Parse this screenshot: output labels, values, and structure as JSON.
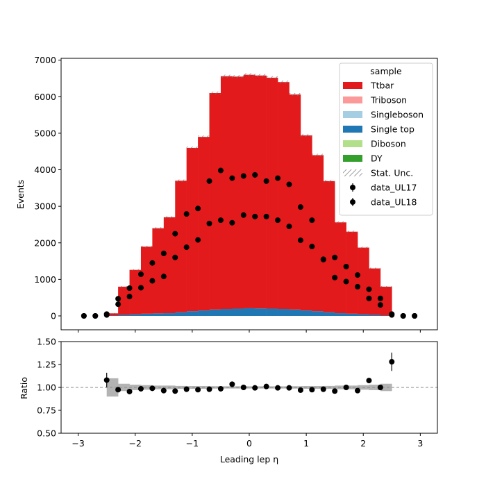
{
  "chart_data": {
    "type": "bar",
    "stacked": true,
    "xlabel": "Leading lep η",
    "ylabel": "Events",
    "ratio_ylabel": "Ratio",
    "xlim": [
      -3.3,
      3.3
    ],
    "ylim": [
      -380,
      7050
    ],
    "ratio_ylim": [
      0.5,
      1.5
    ],
    "x_ticks": [
      -3,
      -2,
      -1,
      0,
      1,
      2,
      3
    ],
    "x_tick_labels": [
      "−3",
      "−2",
      "−1",
      "0",
      "1",
      "2",
      "3"
    ],
    "y_ticks": [
      0,
      1000,
      2000,
      3000,
      4000,
      5000,
      6000,
      7000
    ],
    "y_tick_labels": [
      "0",
      "1000",
      "2000",
      "3000",
      "4000",
      "5000",
      "6000",
      "7000"
    ],
    "ratio_y_ticks": [
      0.5,
      0.75,
      1.0,
      1.25,
      1.5
    ],
    "ratio_y_tick_labels": [
      "0.50",
      "0.75",
      "1.00",
      "1.25",
      "1.50"
    ],
    "legend": {
      "title": "sample",
      "placement": "top-right",
      "entries": [
        {
          "label": "Ttbar",
          "kind": "fill",
          "color": "#e31a1c"
        },
        {
          "label": "Triboson",
          "kind": "fill",
          "color": "#fb9a99"
        },
        {
          "label": "Singleboson",
          "kind": "fill",
          "color": "#a6cee3"
        },
        {
          "label": "Single top",
          "kind": "fill",
          "color": "#1f78b4"
        },
        {
          "label": "Diboson",
          "kind": "fill",
          "color": "#b2df8a"
        },
        {
          "label": "DY",
          "kind": "fill",
          "color": "#33a02c"
        },
        {
          "label": "Stat. Unc.",
          "kind": "hatch",
          "color": "#888888"
        },
        {
          "label": "data_UL17",
          "kind": "marker",
          "color": "#000000"
        },
        {
          "label": "data_UL18",
          "kind": "marker",
          "color": "#000000"
        }
      ]
    },
    "bin_edges": [
      -2.5,
      -2.3,
      -2.1,
      -1.9,
      -1.7,
      -1.5,
      -1.3,
      -1.1,
      -0.9,
      -0.7,
      -0.5,
      -0.3,
      -0.1,
      0.1,
      0.3,
      0.5,
      0.7,
      0.9,
      1.1,
      1.3,
      1.5,
      1.7,
      1.9,
      2.1,
      2.3,
      2.5
    ],
    "series": [
      {
        "name": "Single top",
        "color": "#1f78b4",
        "values": [
          10,
          30,
          45,
          60,
          70,
          75,
          100,
          130,
          150,
          175,
          190,
          200,
          210,
          205,
          200,
          190,
          175,
          150,
          130,
          100,
          75,
          60,
          45,
          30,
          10
        ]
      },
      {
        "name": "Ttbar",
        "color": "#e31a1c",
        "values": [
          60,
          770,
          1215,
          1835,
          2330,
          2625,
          3600,
          4470,
          4750,
          5925,
          6370,
          6350,
          6390,
          6375,
          6320,
          6210,
          5885,
          4790,
          4270,
          3590,
          2485,
          2245,
          1825,
          1270,
          790
        ]
      }
    ],
    "totals": [
      70,
      800,
      1260,
      1895,
      2400,
      2700,
      3700,
      4600,
      4900,
      6100,
      6560,
      6550,
      6600,
      6580,
      6520,
      6400,
      6060,
      4940,
      4400,
      3690,
      2560,
      2305,
      1870,
      1300,
      800
    ],
    "data_UL17": {
      "x": [
        -2.9,
        -2.7,
        -2.5,
        -2.3,
        -2.1,
        -1.9,
        -1.7,
        -1.5,
        -1.3,
        -1.1,
        -0.9,
        -0.7,
        -0.5,
        -0.3,
        -0.1,
        0.1,
        0.3,
        0.5,
        0.7,
        0.9,
        1.1,
        1.3,
        1.5,
        1.7,
        1.9,
        2.1,
        2.3,
        2.5,
        2.7,
        2.9
      ],
      "y": [
        0,
        0,
        50,
        470,
        760,
        1140,
        1450,
        1710,
        2250,
        2790,
        2940,
        3690,
        3980,
        3770,
        3830,
        3860,
        3690,
        3770,
        3600,
        2980,
        2620,
        1540,
        1600,
        1350,
        1120,
        730,
        480,
        50,
        0,
        0
      ]
    },
    "data_UL18": {
      "x": [
        -2.9,
        -2.7,
        -2.5,
        -2.3,
        -2.1,
        -1.9,
        -1.7,
        -1.5,
        -1.3,
        -1.1,
        -0.9,
        -0.7,
        -0.5,
        -0.3,
        -0.1,
        0.1,
        0.3,
        0.5,
        0.7,
        0.9,
        1.1,
        1.3,
        1.5,
        1.7,
        1.9,
        2.1,
        2.3,
        2.5,
        2.7,
        2.9
      ],
      "y": [
        0,
        0,
        25,
        320,
        530,
        770,
        960,
        1080,
        1600,
        1880,
        2080,
        2530,
        2620,
        2550,
        2760,
        2720,
        2720,
        2620,
        2450,
        2070,
        1900,
        1550,
        1050,
        940,
        800,
        480,
        300,
        25,
        0,
        0
      ]
    },
    "ratio": {
      "x": [
        -2.5,
        -2.3,
        -2.1,
        -1.9,
        -1.7,
        -1.5,
        -1.3,
        -1.1,
        -0.9,
        -0.7,
        -0.5,
        -0.3,
        -0.1,
        0.1,
        0.3,
        0.5,
        0.7,
        0.9,
        1.1,
        1.3,
        1.5,
        1.7,
        1.9,
        2.1,
        2.3,
        2.5
      ],
      "y": [
        1.08,
        0.975,
        0.955,
        0.985,
        0.99,
        0.965,
        0.96,
        0.98,
        0.975,
        0.98,
        0.985,
        1.035,
        1.0,
        0.995,
        1.01,
        0.995,
        0.995,
        0.97,
        0.975,
        0.98,
        0.96,
        1.0,
        0.965,
        1.075,
        1.0,
        1.28
      ],
      "err": [
        0.08,
        0.01,
        0.01,
        0.01,
        0.01,
        0.01,
        0.008,
        0.007,
        0.007,
        0.006,
        0.006,
        0.006,
        0.006,
        0.006,
        0.006,
        0.006,
        0.006,
        0.007,
        0.007,
        0.008,
        0.01,
        0.01,
        0.01,
        0.01,
        0.015,
        0.1
      ],
      "unc_band": [
        0.1,
        0.04,
        0.03,
        0.025,
        0.02,
        0.02,
        0.016,
        0.015,
        0.015,
        0.013,
        0.012,
        0.012,
        0.012,
        0.012,
        0.012,
        0.012,
        0.013,
        0.015,
        0.015,
        0.016,
        0.02,
        0.02,
        0.025,
        0.03,
        0.04
      ],
      "reference_line": 1.0
    }
  }
}
